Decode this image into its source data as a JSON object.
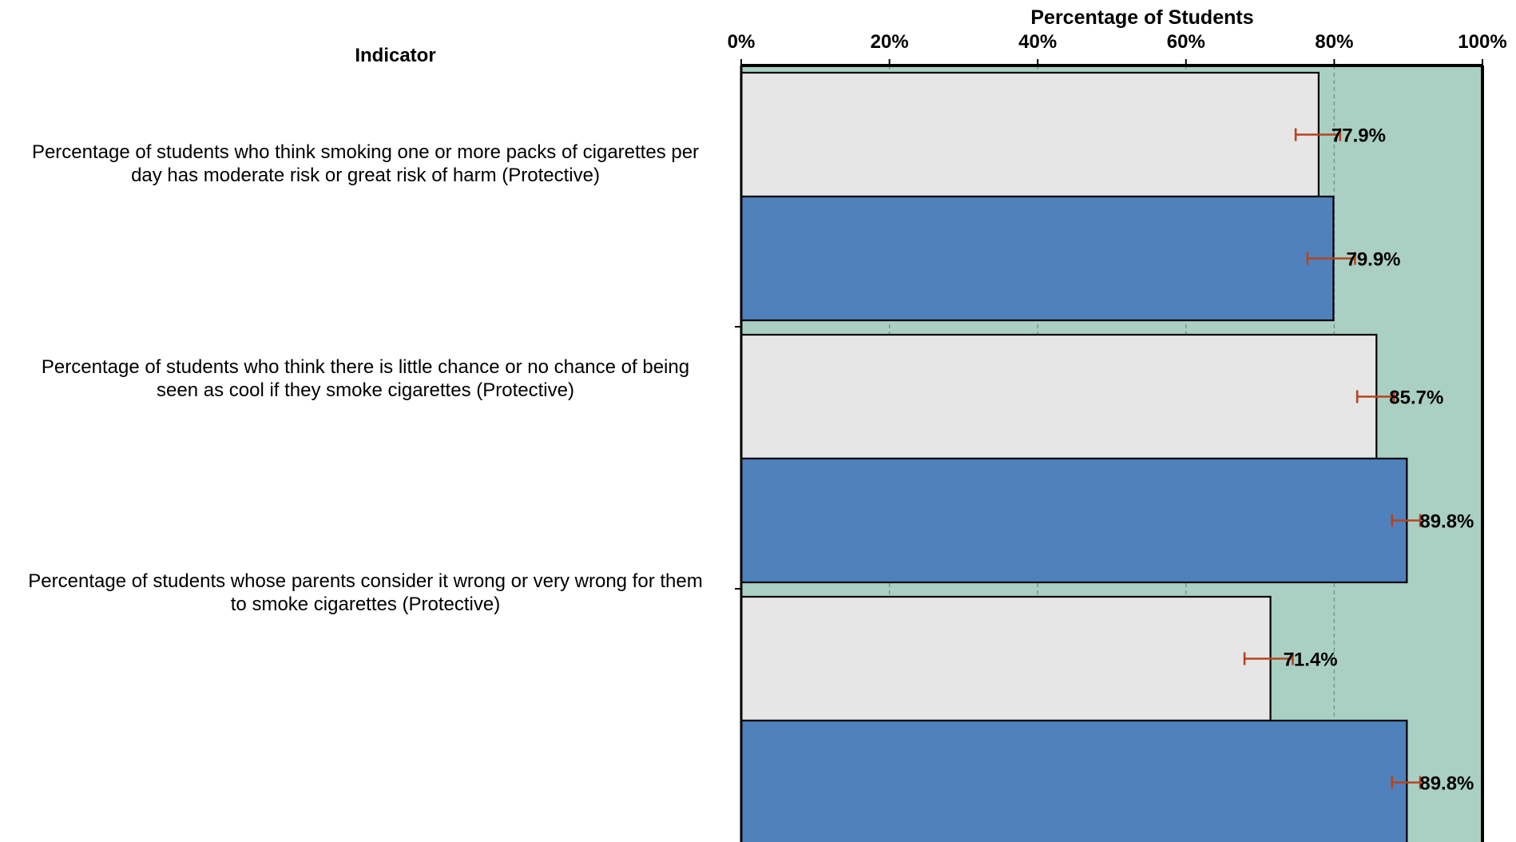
{
  "header": {
    "indicator_label": "Indicator",
    "chart_title": "Percentage of Students"
  },
  "chart_data": {
    "type": "bar",
    "orientation": "horizontal",
    "title": "Percentage of Students",
    "xlabel": "Percentage of Students",
    "ylabel": "Indicator",
    "xlim": [
      0,
      100
    ],
    "x_ticks": [
      "0%",
      "20%",
      "40%",
      "60%",
      "80%",
      "100%"
    ],
    "categories": [
      "Percentage of students who think smoking one or more packs of cigarettes per day has moderate risk or great risk of harm (Protective)",
      "Percentage of students who think there is little chance or no chance of being seen as cool if they smoke cigarettes (Protective)",
      "Percentage of students whose parents consider it wrong or very wrong for them to smoke cigarettes (Protective)"
    ],
    "category_lines": [
      [
        "Percentage of students who think smoking one or more packs of cigarettes per",
        "day has moderate risk or great risk of harm (Protective)"
      ],
      [
        "Percentage of students who think there is little chance or no chance of being",
        "seen as cool if they smoke cigarettes (Protective)"
      ],
      [
        "Percentage of students whose parents consider it wrong or very wrong for them",
        "to smoke cigarettes (Protective)"
      ]
    ],
    "series": [
      {
        "values": [
          77.9,
          85.7,
          71.4
        ],
        "labels": [
          "77.9%",
          "85.7%",
          "71.4%"
        ],
        "error_low": [
          74.8,
          83.1,
          67.9
        ],
        "error_high": [
          80.8,
          88.1,
          74.4
        ],
        "color": "#E6E6E6"
      },
      {
        "values": [
          79.9,
          89.8,
          89.8
        ],
        "labels": [
          "79.9%",
          "89.8%",
          "89.8%"
        ],
        "error_low": [
          76.4,
          87.8,
          87.8
        ],
        "error_high": [
          82.8,
          91.6,
          91.6
        ],
        "color": "#4F81BD"
      }
    ],
    "plot_background": "#A9D0C3",
    "error_bar_color": "#B5441F",
    "grid": true,
    "legend": "none"
  }
}
